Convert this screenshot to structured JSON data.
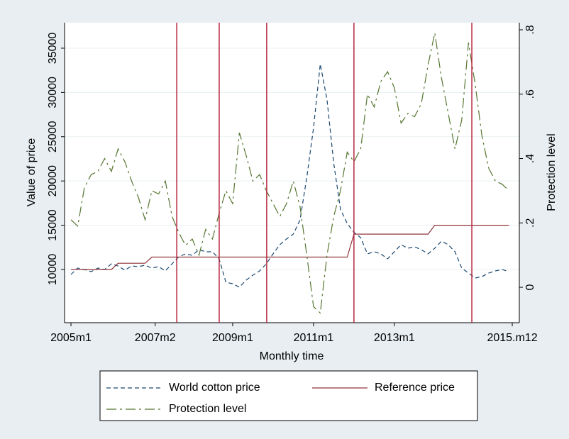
{
  "chart_data": {
    "type": "line",
    "xlabel": "Monthly time",
    "ylabel": "Value of price",
    "y2label": "Protection level",
    "x": [
      0,
      2,
      4,
      6,
      8,
      10,
      12,
      14,
      16,
      18,
      20,
      22,
      24,
      26,
      28,
      30,
      32,
      34,
      36,
      38,
      40,
      42,
      44,
      46,
      48,
      50,
      52,
      54,
      56,
      58,
      60,
      62,
      64,
      66,
      68,
      70,
      72,
      74,
      76,
      78,
      80,
      82,
      84,
      86,
      88,
      90,
      92,
      94,
      96,
      98,
      100,
      102,
      104,
      106,
      108,
      110,
      112,
      114,
      116,
      118,
      120,
      122,
      124,
      126,
      128,
      130
    ],
    "series": [
      {
        "name": "World cotton price",
        "color": "#1a476f",
        "dash": "6 4",
        "axis": "y",
        "values": [
          9440,
          10160,
          10000,
          9760,
          10160,
          10000,
          10640,
          10400,
          9920,
          10400,
          10320,
          10480,
          10160,
          10320,
          9840,
          10640,
          11440,
          11760,
          11600,
          12240,
          12000,
          12000,
          11200,
          8560,
          8400,
          8000,
          8800,
          9360,
          9840,
          10640,
          11760,
          12800,
          13450,
          14000,
          15600,
          20400,
          26000,
          33200,
          29200,
          22000,
          16800,
          15200,
          14200,
          13600,
          11760,
          12000,
          11760,
          11200,
          12000,
          12800,
          12400,
          12560,
          12240,
          11760,
          12400,
          13200,
          12800,
          12000,
          10160,
          9600,
          9040,
          9200,
          9600,
          9840,
          10000,
          9760
        ]
      },
      {
        "name": "Reference price",
        "color": "#90353b",
        "dash": "none",
        "axis": "y",
        "values": [
          10000,
          10000,
          10000,
          10000,
          10000,
          10000,
          10000,
          10700,
          10700,
          10700,
          10700,
          10700,
          11400,
          11400,
          11400,
          11400,
          11400,
          11400,
          11400,
          11400,
          11400,
          11400,
          11400,
          11400,
          11400,
          11400,
          11400,
          11400,
          11400,
          11400,
          11400,
          11400,
          11400,
          11400,
          11400,
          11400,
          11400,
          11400,
          11400,
          11400,
          11400,
          11400,
          14000,
          14000,
          14000,
          14000,
          14000,
          14000,
          14000,
          14000,
          14000,
          14000,
          14000,
          14000,
          15000,
          15000,
          15000,
          15000,
          15000,
          15000,
          15000,
          15000,
          15000,
          15000,
          15000,
          15000
        ]
      },
      {
        "name": "Protection level",
        "color": "#55752f",
        "dash": "14 5 3 5",
        "axis": "y2",
        "values": [
          0.21,
          0.19,
          0.31,
          0.35,
          0.36,
          0.4,
          0.36,
          0.43,
          0.39,
          0.33,
          0.28,
          0.21,
          0.3,
          0.29,
          0.33,
          0.22,
          0.17,
          0.13,
          0.15,
          0.1,
          0.18,
          0.15,
          0.23,
          0.3,
          0.26,
          0.48,
          0.41,
          0.33,
          0.35,
          0.3,
          0.26,
          0.22,
          0.26,
          0.33,
          0.25,
          0.1,
          -0.06,
          -0.08,
          0.1,
          0.22,
          0.3,
          0.42,
          0.39,
          0.43,
          0.6,
          0.56,
          0.64,
          0.67,
          0.62,
          0.51,
          0.54,
          0.53,
          0.57,
          0.69,
          0.79,
          0.65,
          0.54,
          0.43,
          0.52,
          0.76,
          0.63,
          0.47,
          0.37,
          0.33,
          0.32,
          0.3
        ]
      }
    ],
    "xlim": [
      -1.9,
      133.1
    ],
    "xticks": [
      {
        "value": 0,
        "label": "2005m1"
      },
      {
        "value": 25,
        "label": "2007m2"
      },
      {
        "value": 48,
        "label": "2009m1"
      },
      {
        "value": 72,
        "label": "2011m1"
      },
      {
        "value": 96,
        "label": "2013m1"
      },
      {
        "value": 131,
        "label": "2015.m12"
      }
    ],
    "ylim": [
      3990,
      37880
    ],
    "yticks": [
      10000,
      15000,
      20000,
      25000,
      30000,
      35000
    ],
    "y2lim": [
      -0.11,
      0.822
    ],
    "y2ticks": [
      0,
      {
        "value": 0.2,
        "label": ".2"
      },
      {
        "value": 0.4,
        "label": ".4"
      },
      {
        "value": 0.6,
        "label": ".6"
      },
      {
        "value": 0.8,
        "label": ".8"
      }
    ],
    "vlines": [
      31.4,
      44,
      58.1,
      84,
      119
    ],
    "vline_color": "#b5273f",
    "grid": true
  }
}
